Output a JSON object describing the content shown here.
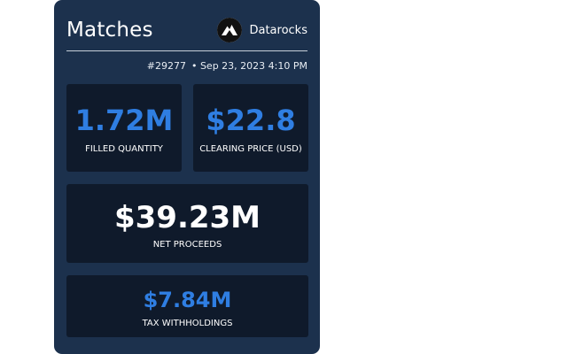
{
  "card": {
    "title": "Matches",
    "brand": {
      "name": "Datarocks",
      "logo_icon": "mountain-icon"
    },
    "match_id": "#29277",
    "timestamp": "• Sep 23, 2023 4:10 PM"
  },
  "metrics": {
    "filled_quantity": {
      "value": "1.72M",
      "label": "FILLED QUANTITY"
    },
    "clearing_price": {
      "value": "$22.8",
      "label": "CLEARING PRICE (USD)"
    },
    "net_proceeds": {
      "value": "$39.23M",
      "label": "NET PROCEEDS"
    },
    "tax_withholdings": {
      "value": "$7.84M",
      "label": "TAX WITHHOLDINGS"
    }
  },
  "colors": {
    "card_background": "#1c314d",
    "tile_background": "#0f1a2b",
    "accent_blue": "#2f7ee2",
    "text_white": "#ffffff"
  }
}
